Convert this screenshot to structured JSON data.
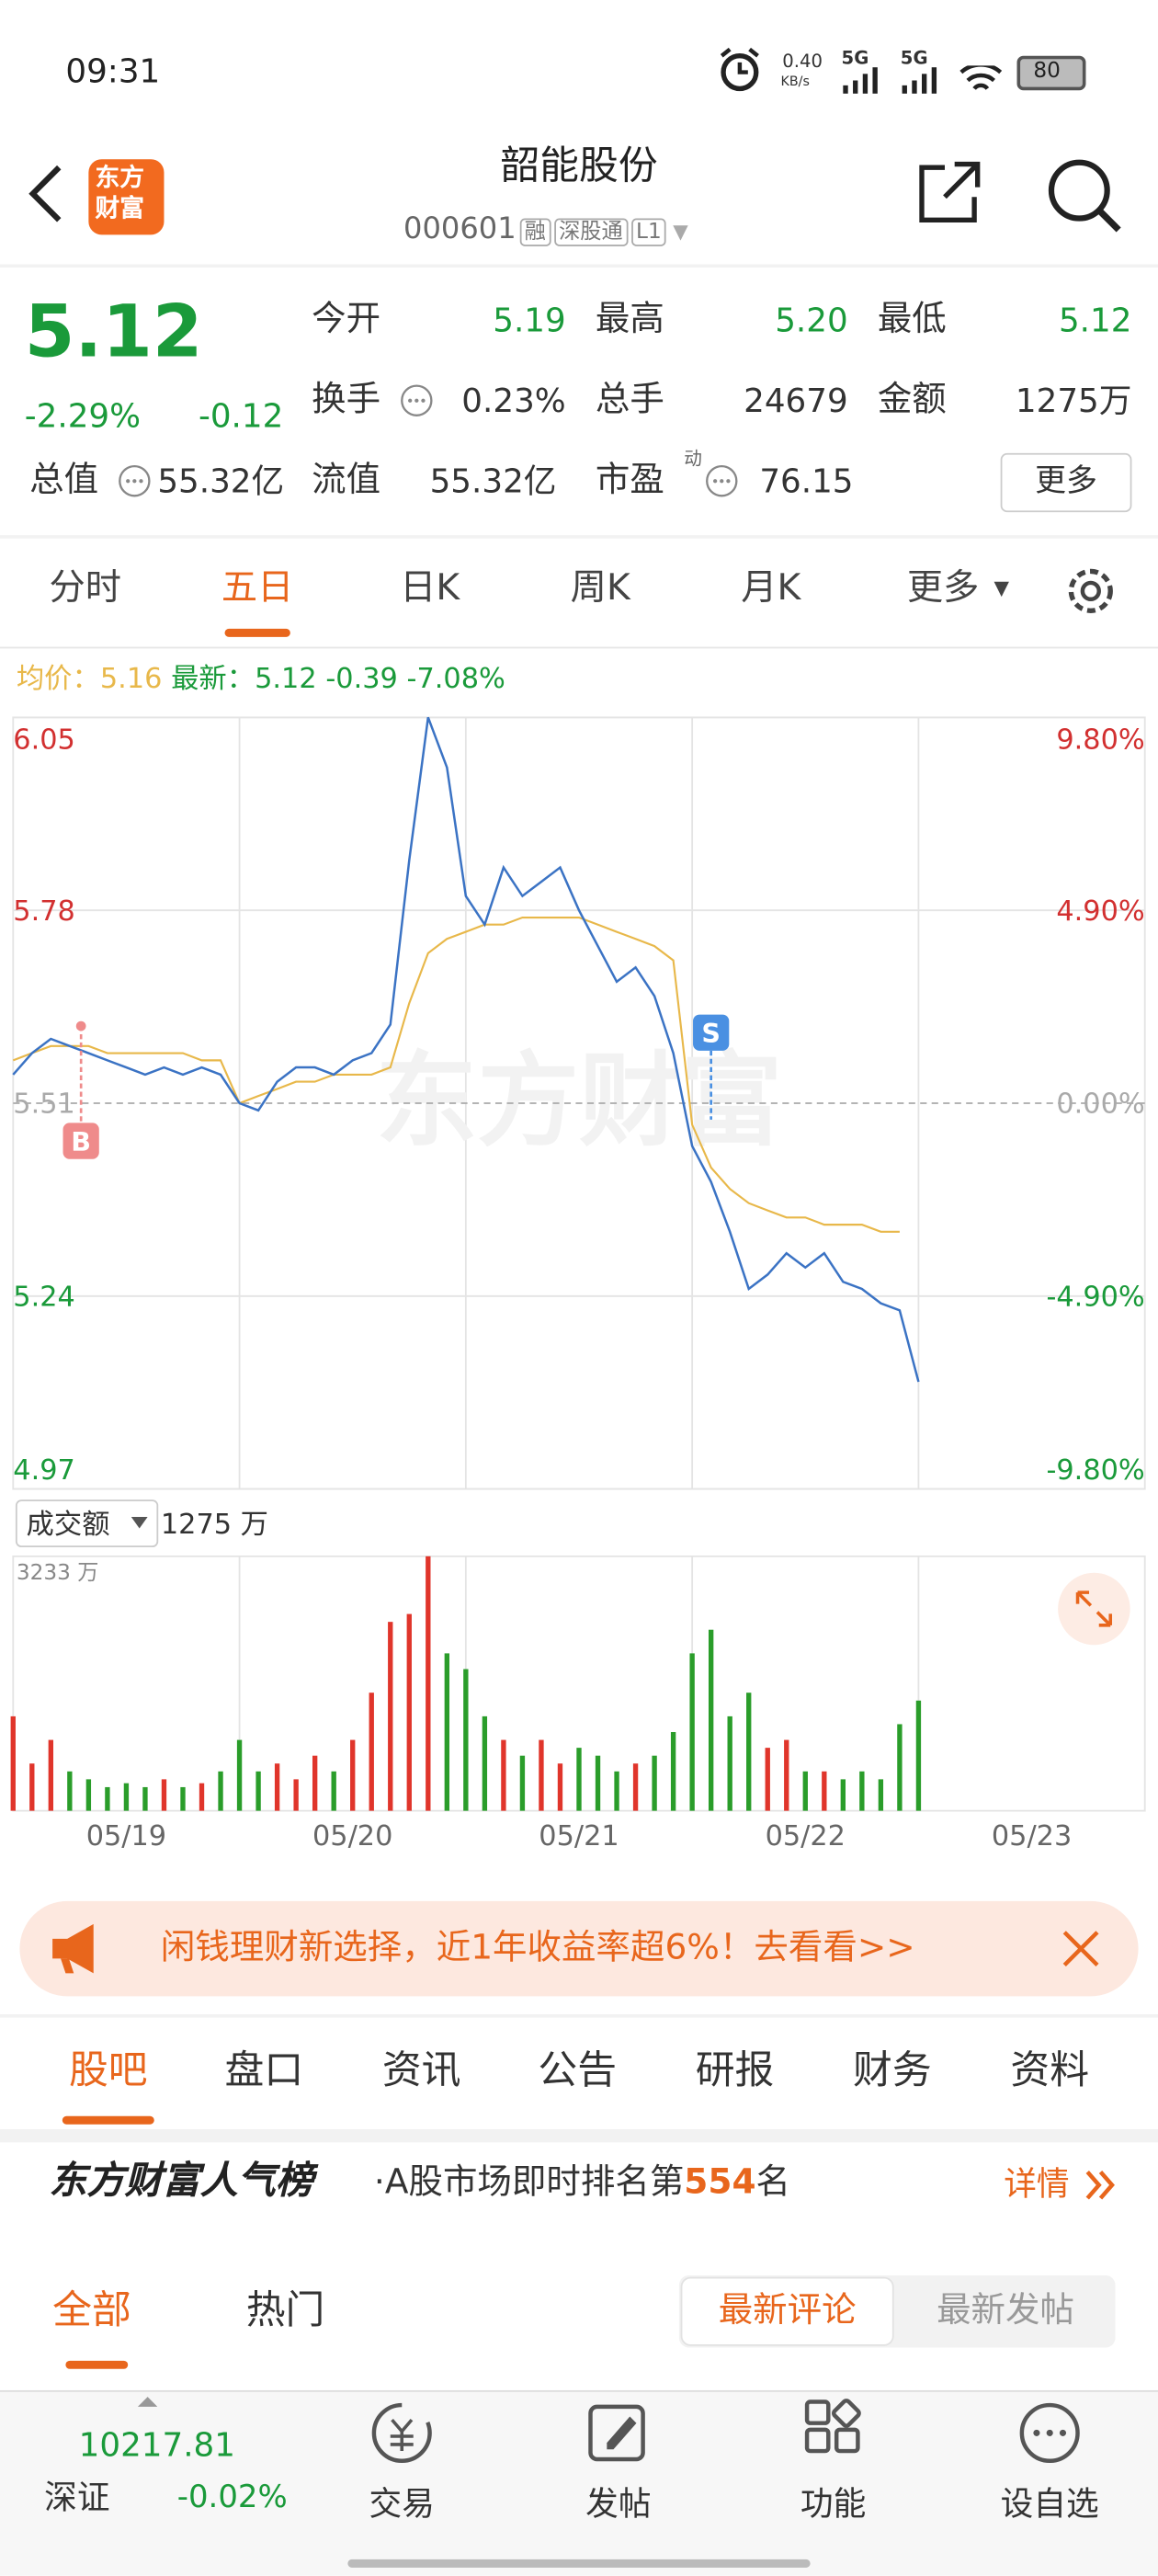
{
  "status_bar": {
    "time": "09:31",
    "speed": "0.40",
    "speed_unit": "KB/s",
    "net1": "5G",
    "net2": "5G",
    "battery": "80"
  },
  "header": {
    "logo_lines": [
      "东方",
      "财富"
    ],
    "title": "韶能股份",
    "code": "000601",
    "tags": [
      "融",
      "深股通",
      "L1"
    ]
  },
  "quote": {
    "price": "5.12",
    "change_pct": "-2.29%",
    "change": "-0.12",
    "fields": [
      {
        "label": "今开",
        "value": "5.19"
      },
      {
        "label": "最高",
        "value": "5.20"
      },
      {
        "label": "最低",
        "value": "5.12"
      },
      {
        "label": "换手",
        "value": "0.23%"
      },
      {
        "label": "总手",
        "value": "24679"
      },
      {
        "label": "金额",
        "value": "1275万"
      },
      {
        "label": "总值",
        "value": "55.32亿"
      },
      {
        "label": "流值",
        "value": "55.32亿"
      },
      {
        "label": "市盈",
        "value": "76.15"
      }
    ],
    "pe_sup": "动",
    "more": "更多"
  },
  "period_tabs": {
    "items": [
      "分时",
      "五日",
      "日K",
      "周K",
      "月K",
      "更多"
    ],
    "active": 1
  },
  "legend": {
    "avg_label": "均价：",
    "avg": "5.16",
    "last_label": "最新：",
    "last": "5.12",
    "change": "-0.39",
    "change_pct": "-7.08%"
  },
  "chart_data": {
    "type": "line",
    "watermark": "东方财富",
    "xlim": [
      0,
      60
    ],
    "xticks": [
      {
        "value": 6,
        "label": "05/19"
      },
      {
        "value": 18,
        "label": "05/20"
      },
      {
        "value": 30,
        "label": "05/21"
      },
      {
        "value": 42,
        "label": "05/22"
      },
      {
        "value": 54,
        "label": "05/23"
      }
    ],
    "ylim": [
      4.97,
      6.05
    ],
    "yticks": [
      4.97,
      5.24,
      5.51,
      5.78,
      6.05
    ],
    "y2lim": [
      -9.8,
      9.8
    ],
    "y2ticks": [
      {
        "value": -9.8,
        "label": "-9.80%"
      },
      {
        "value": -4.9,
        "label": "-4.90%"
      },
      {
        "value": 0,
        "label": "0.00%"
      },
      {
        "value": 4.9,
        "label": "4.90%"
      },
      {
        "value": 9.8,
        "label": "9.80%"
      }
    ],
    "up_color": "#e0352b",
    "down_color": "#2a9d2a",
    "x": [
      0,
      1,
      2,
      3,
      4,
      5,
      6,
      7,
      8,
      9,
      10,
      11,
      12,
      13,
      14,
      15,
      16,
      17,
      18,
      19,
      20,
      21,
      22,
      23,
      24,
      25,
      26,
      27,
      28,
      29,
      30,
      31,
      32,
      33,
      34,
      35,
      36,
      37,
      38,
      39,
      40,
      41,
      42,
      43,
      44,
      45,
      46,
      47,
      48
    ],
    "series": [
      {
        "name": "最新",
        "color": "#3b73c4",
        "values": [
          5.55,
          5.58,
          5.6,
          5.59,
          5.58,
          5.57,
          5.56,
          5.55,
          5.56,
          5.55,
          5.56,
          5.55,
          5.51,
          5.5,
          5.54,
          5.56,
          5.56,
          5.55,
          5.57,
          5.58,
          5.62,
          5.85,
          6.05,
          5.98,
          5.8,
          5.76,
          5.84,
          5.8,
          5.82,
          5.84,
          5.78,
          5.73,
          5.68,
          5.7,
          5.66,
          5.58,
          5.45,
          5.4,
          5.33,
          5.25,
          5.27,
          5.3,
          5.28,
          5.3,
          5.26,
          5.25,
          5.23,
          5.22,
          5.12
        ]
      },
      {
        "name": "均价",
        "color": "#e8b84a",
        "values": [
          5.57,
          5.58,
          5.59,
          5.59,
          5.59,
          5.58,
          5.58,
          5.58,
          5.58,
          5.58,
          5.57,
          5.57,
          5.51,
          5.52,
          5.53,
          5.54,
          5.54,
          5.55,
          5.55,
          5.55,
          5.56,
          5.65,
          5.72,
          5.74,
          5.75,
          5.76,
          5.76,
          5.77,
          5.77,
          5.77,
          5.77,
          5.76,
          5.75,
          5.74,
          5.73,
          5.71,
          5.48,
          5.42,
          5.39,
          5.37,
          5.36,
          5.35,
          5.35,
          5.34,
          5.34,
          5.34,
          5.33,
          5.33,
          null
        ]
      }
    ],
    "trades": [
      {
        "label": "B",
        "x": 3.6
      },
      {
        "label": "S",
        "x": 37
      }
    ],
    "volume": {
      "selector": "成交额",
      "current": "1275 万",
      "ylim": [
        0,
        3233
      ],
      "yticks": [
        {
          "value": 3233,
          "label": "3233 万"
        }
      ],
      "values": [
        1200,
        600,
        900,
        500,
        400,
        300,
        350,
        300,
        400,
        300,
        350,
        500,
        900,
        500,
        600,
        400,
        700,
        500,
        900,
        1500,
        2400,
        2500,
        3233,
        2000,
        1800,
        1200,
        900,
        700,
        900,
        600,
        800,
        700,
        500,
        600,
        700,
        1000,
        2000,
        2300,
        1200,
        1500,
        800,
        900,
        500,
        500,
        400,
        500,
        400,
        1100,
        1400
      ]
    }
  },
  "banner": {
    "text": "闲钱理财新选择，近1年收益率超6%！去看看>>"
  },
  "section_tabs": {
    "items": [
      "股吧",
      "盘口",
      "资讯",
      "公告",
      "研报",
      "财务",
      "资料"
    ],
    "active": 0
  },
  "rank": {
    "brand": "东方财富人气榜",
    "text": "·A股市场即时排名第",
    "number": "554",
    "suffix": "名",
    "detail": "详情"
  },
  "filter": {
    "tabs": [
      "全部",
      "热门"
    ],
    "sort": [
      "最新评论",
      "最新发帖"
    ]
  },
  "bottom_nav": {
    "index_value": "10217.81",
    "index_name": "深证",
    "index_change": "-0.02%",
    "items": [
      "交易",
      "发帖",
      "功能",
      "设自选"
    ]
  }
}
